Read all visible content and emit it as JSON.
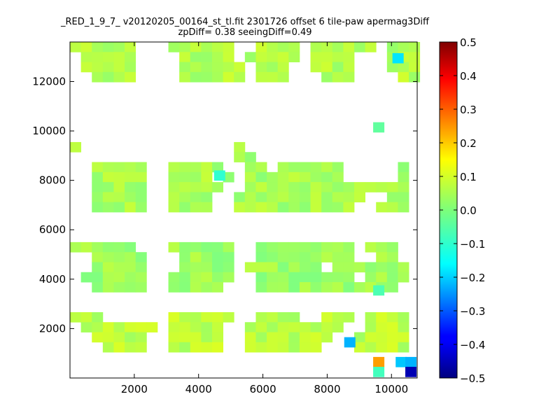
{
  "chart_data": {
    "type": "heatmap",
    "title": "_RED_1_9_7_ v20120205_00164_st_tl.fit 2301726 offset 6 tile-paw apermag3Diff",
    "subtitle": "zpDiff= 0.38 seeingDiff=0.49",
    "xlabel": "",
    "ylabel": "",
    "xlim": [
      0,
      10800
    ],
    "ylim": [
      0,
      13600
    ],
    "xticks": [
      "2000",
      "4000",
      "6000",
      "8000",
      "10000"
    ],
    "yticks": [
      "2000",
      "4000",
      "6000",
      "8000",
      "10000",
      "12000"
    ],
    "colorbar": {
      "colormap": "jet",
      "range": [
        -0.5,
        0.5
      ],
      "ticks": [
        "0.5",
        "0.4",
        "0.3",
        "0.2",
        "0.1",
        "0.0",
        "−0.1",
        "−0.2",
        "−0.3",
        "−0.4",
        "−0.5"
      ]
    },
    "grid": false,
    "cell_size": [
      340,
      405
    ],
    "columns": [
      0,
      1,
      2,
      3,
      4,
      5,
      6,
      7,
      8,
      9,
      10,
      11,
      12,
      13,
      14,
      15,
      16,
      17,
      18,
      19,
      20,
      21,
      22,
      23,
      24,
      25,
      26,
      27,
      28,
      29,
      30,
      31
    ],
    "groups": [
      {
        "x0": 0,
        "cols": [
          [
            0,
            8
          ],
          [
            9,
            11
          ],
          [
            12,
            17
          ],
          [
            18,
            23
          ],
          [
            24,
            26
          ],
          [
            27,
            31
          ]
        ],
        "blocks": [
          {
            "r0": 0,
            "value": 0.05,
            "mask": [
              "11111100.111111..1111.111111.111",
              ".11111.00.11111.11111.1111...111",
              ".11111..0.111111.111..1111...111",
              "..1111..0.111111.111...111....11"
            ]
          },
          {
            "r0": 10,
            "value": 0.04,
            "mask": [
              "1......0.......1..............",
              "...............11..............",
              "..11111.011111..11.111111.....1",
              "..11111.01111.1.111111111.....1",
              "..11111.011111..111111111111111",
              "..11111.01111..111111111111..11",
              "..11111.01111..11111111111..111"
            ]
          },
          {
            "r0": 20,
            "value": 0.03,
            "mask": [
              "111111..0111111..111111111.111.",
              "..11111.0.11111..111111111..11.",
              "..11111.0.11111.1111111.1111111",
              ".111111.0111111..111111111.1111",
              "..11111.011111...1111111111111."
            ]
          },
          {
            "r0": 27,
            "value": 0.06,
            "mask": [
              "111.....0111111..1111..111.1111",
              ".1111111.11111..111111111..1111",
              "..11111..11111..11111111..11111",
              "...1111..11111..1111111...11111"
            ]
          }
        ]
      }
    ],
    "specials": [
      {
        "x": 10200,
        "y": 12950,
        "value": -0.15
      },
      {
        "x": 9600,
        "y": 10150,
        "value": -0.03
      },
      {
        "x": 4650,
        "y": 8200,
        "value": -0.08
      },
      {
        "x": 9600,
        "y": 3550,
        "value": -0.05
      },
      {
        "x": 8700,
        "y": 1450,
        "value": -0.2
      },
      {
        "x": 9600,
        "y": 650,
        "value": 0.22
      },
      {
        "x": 9600,
        "y": 250,
        "value": -0.06
      },
      {
        "x": 10300,
        "y": 650,
        "value": -0.18
      },
      {
        "x": 10600,
        "y": 650,
        "value": -0.2
      },
      {
        "x": 10600,
        "y": 250,
        "value": -0.45
      }
    ]
  }
}
